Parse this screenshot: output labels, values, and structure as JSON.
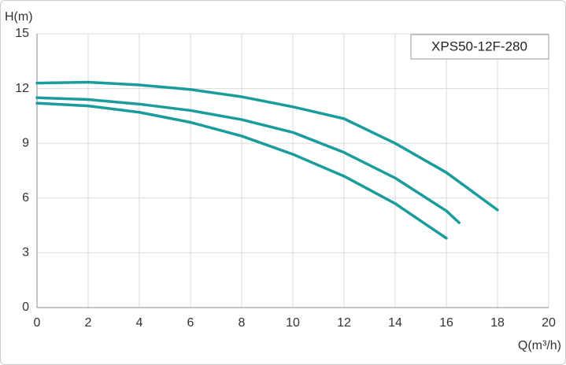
{
  "chart_data": {
    "type": "line",
    "title": "XPS50-12F-280",
    "xlabel": "Q(m³/h)",
    "ylabel": "H(m)",
    "xlim": [
      0,
      20
    ],
    "xticks": [
      0,
      2,
      4,
      6,
      8,
      10,
      12,
      14,
      16,
      18,
      20
    ],
    "ylim": [
      0,
      15
    ],
    "yticks": [
      0,
      3,
      6,
      9,
      12,
      15
    ],
    "grid": true,
    "series": [
      {
        "color": "#1b9c9c",
        "x": [
          0,
          2,
          4,
          6,
          8,
          10,
          12,
          14,
          16,
          18
        ],
        "values": [
          12.3,
          12.35,
          12.2,
          11.95,
          11.55,
          11.0,
          10.35,
          9.0,
          7.4,
          5.35
        ]
      },
      {
        "color": "#1b9c9c",
        "x": [
          0,
          2,
          4,
          6,
          8,
          10,
          12,
          14,
          16,
          16.5
        ],
        "values": [
          11.5,
          11.4,
          11.15,
          10.8,
          10.3,
          9.6,
          8.5,
          7.1,
          5.3,
          4.65
        ]
      },
      {
        "color": "#1b9c9c",
        "x": [
          0,
          2,
          4,
          6,
          8,
          10,
          12,
          14,
          16
        ],
        "values": [
          11.2,
          11.05,
          10.7,
          10.15,
          9.4,
          8.4,
          7.2,
          5.7,
          3.8
        ]
      }
    ]
  }
}
